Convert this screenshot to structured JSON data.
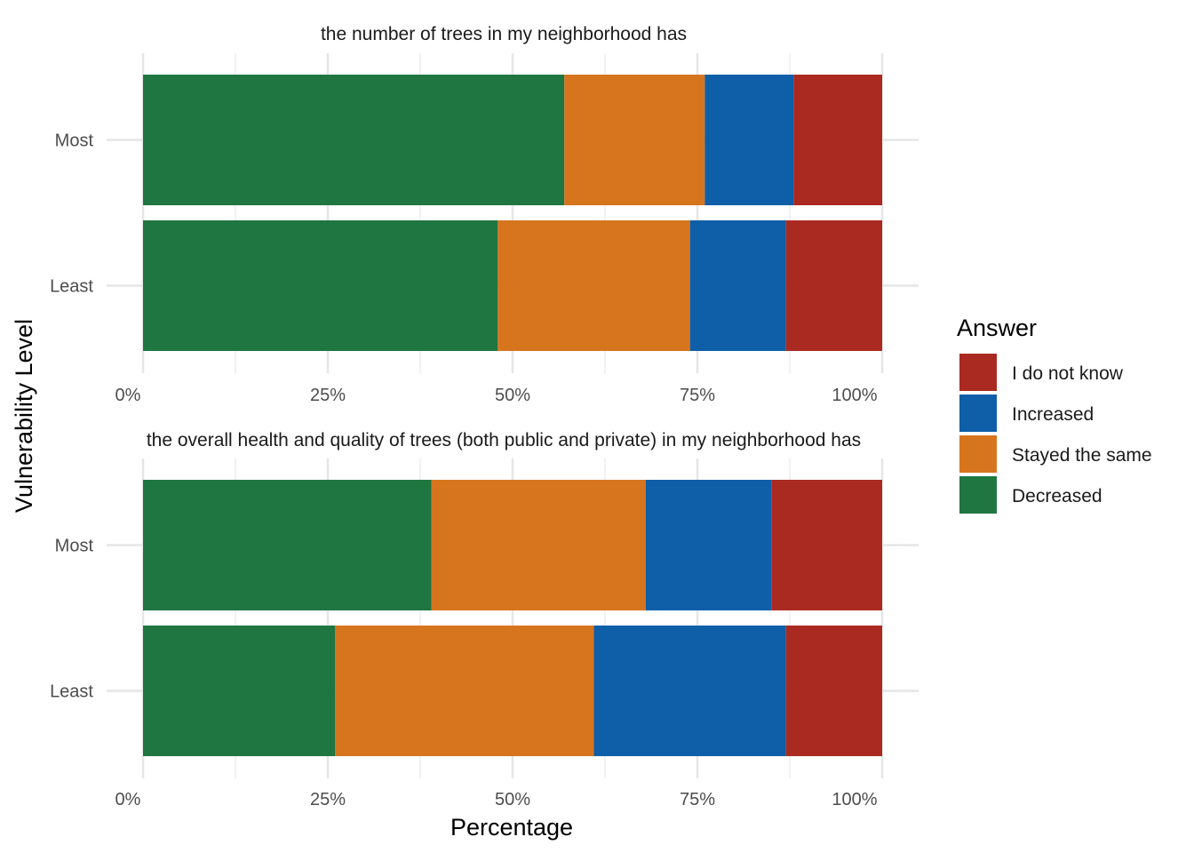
{
  "chart_data": [
    {
      "type": "bar",
      "orientation": "horizontal",
      "stacked": true,
      "title": "the number of trees in my neighborhood has",
      "categories": [
        "Most",
        "Least"
      ],
      "series": [
        {
          "name": "Decreased",
          "values": [
            57,
            48
          ]
        },
        {
          "name": "Stayed the same",
          "values": [
            19,
            26
          ]
        },
        {
          "name": "Increased",
          "values": [
            12,
            13
          ]
        },
        {
          "name": "I do not know",
          "values": [
            12,
            13
          ]
        }
      ],
      "xlim": [
        0,
        100
      ],
      "xticks": [
        "0%",
        "25%",
        "50%",
        "75%",
        "100%"
      ],
      "grid": true
    },
    {
      "type": "bar",
      "orientation": "horizontal",
      "stacked": true,
      "title": "the overall health and quality of trees (both public and private) in my neighborhood has",
      "categories": [
        "Most",
        "Least"
      ],
      "series": [
        {
          "name": "Decreased",
          "values": [
            39,
            26
          ]
        },
        {
          "name": "Stayed the same",
          "values": [
            29,
            35
          ]
        },
        {
          "name": "Increased",
          "values": [
            17,
            26
          ]
        },
        {
          "name": "I do not know",
          "values": [
            15,
            13
          ]
        }
      ],
      "xlim": [
        0,
        100
      ],
      "xticks": [
        "0%",
        "25%",
        "50%",
        "75%",
        "100%"
      ],
      "grid": true
    }
  ],
  "axes": {
    "xlabel": "Percentage",
    "ylabel": "Vulnerability Level"
  },
  "legend": {
    "title": "Answer",
    "position": "right",
    "items": [
      {
        "label": "I do not know",
        "color": "#AA2A21"
      },
      {
        "label": "Increased",
        "color": "#0E5EA8"
      },
      {
        "label": "Stayed the same",
        "color": "#D7751F"
      },
      {
        "label": "Decreased",
        "color": "#1F7640"
      }
    ]
  }
}
